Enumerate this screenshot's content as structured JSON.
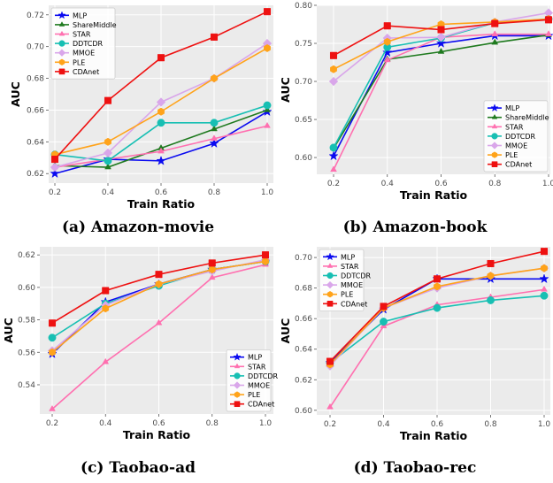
{
  "colors": {
    "MLP": "#0a0af0",
    "ShareMiddle": "#1f7a1f",
    "STAR": "#ff70b0",
    "DDTCDR": "#17bfb3",
    "MMOE": "#d9a6ea",
    "PLE": "#ffa31a",
    "CDAnet": "#ee1111",
    "plot_bg": "#ebebeb",
    "grid": "#ffffff"
  },
  "markers": {
    "MLP": "star",
    "ShareMiddle": "tri",
    "STAR": "tri",
    "DDTCDR": "circle",
    "MMOE": "diamond",
    "PLE": "hexagon",
    "CDAnet": "square"
  },
  "chart_data": [
    {
      "type": "line",
      "caption_letter": "(a)",
      "caption": "Amazon-movie",
      "xlabel": "Train Ratio",
      "ylabel": "AUC",
      "x": [
        0.2,
        0.4,
        0.6,
        0.8,
        1.0
      ],
      "xticks": [
        "0.2",
        "0.4",
        "0.6",
        "0.8",
        "1.0"
      ],
      "ylim": [
        0.614,
        0.726
      ],
      "yticks": [
        0.62,
        0.64,
        0.66,
        0.68,
        0.7,
        0.72
      ],
      "ytick_labels": [
        "0.62",
        "0.64",
        "0.66",
        "0.68",
        "0.70",
        "0.72"
      ],
      "legend": "upper-left",
      "grid": true,
      "series": [
        {
          "name": "MLP",
          "values": [
            0.62,
            0.629,
            0.628,
            0.639,
            0.659
          ]
        },
        {
          "name": "ShareMiddle",
          "values": [
            0.625,
            0.624,
            0.636,
            0.648,
            0.66
          ]
        },
        {
          "name": "STAR",
          "values": [
            0.624,
            0.629,
            0.634,
            0.642,
            0.65
          ]
        },
        {
          "name": "DDTCDR",
          "values": [
            0.632,
            0.628,
            0.652,
            0.652,
            0.663
          ]
        },
        {
          "name": "MMOE",
          "values": [
            0.624,
            0.633,
            0.665,
            0.68,
            0.702
          ]
        },
        {
          "name": "PLE",
          "values": [
            0.632,
            0.64,
            0.659,
            0.68,
            0.699
          ]
        },
        {
          "name": "CDAnet",
          "values": [
            0.629,
            0.666,
            0.693,
            0.706,
            0.722
          ]
        }
      ]
    },
    {
      "type": "line",
      "caption_letter": "(b)",
      "caption": "Amazon-book",
      "xlabel": "Train Ratio",
      "ylabel": "AUC",
      "x": [
        0.2,
        0.4,
        0.6,
        0.8,
        1.0
      ],
      "xticks": [
        "0.2",
        "0.4",
        "0.6",
        "0.8",
        "1.0"
      ],
      "ylim": [
        0.578,
        0.8
      ],
      "yticks": [
        0.6,
        0.65,
        0.7,
        0.75,
        0.8
      ],
      "ytick_labels": [
        "0.60",
        "0.65",
        "0.70",
        "0.75",
        "0.80"
      ],
      "legend": "lower-right",
      "grid": true,
      "series": [
        {
          "name": "MLP",
          "values": [
            0.602,
            0.738,
            0.75,
            0.76,
            0.76
          ]
        },
        {
          "name": "ShareMiddle",
          "values": [
            0.612,
            0.729,
            0.739,
            0.751,
            0.761
          ]
        },
        {
          "name": "STAR",
          "values": [
            0.584,
            0.728,
            0.758,
            0.762,
            0.762
          ]
        },
        {
          "name": "DDTCDR",
          "values": [
            0.613,
            0.745,
            0.757,
            0.777,
            0.782
          ]
        },
        {
          "name": "MMOE",
          "values": [
            0.7,
            0.757,
            0.758,
            0.778,
            0.79
          ]
        },
        {
          "name": "PLE",
          "values": [
            0.716,
            0.752,
            0.775,
            0.778,
            0.782
          ]
        },
        {
          "name": "CDAnet",
          "values": [
            0.734,
            0.773,
            0.768,
            0.776,
            0.781
          ]
        }
      ]
    },
    {
      "type": "line",
      "caption_letter": "(c)",
      "caption": "Taobao-ad",
      "xlabel": "Train Ratio",
      "ylabel": "AUC",
      "x": [
        0.2,
        0.4,
        0.6,
        0.8,
        1.0
      ],
      "xticks": [
        "0.2",
        "0.4",
        "0.6",
        "0.8",
        "1.0"
      ],
      "ylim": [
        0.522,
        0.625
      ],
      "yticks": [
        0.54,
        0.56,
        0.58,
        0.6,
        0.62
      ],
      "ytick_labels": [
        "0.54",
        "0.56",
        "0.58",
        "0.60",
        "0.62"
      ],
      "legend": "lower-right",
      "grid": true,
      "series": [
        {
          "name": "MLP",
          "values": [
            0.559,
            0.591,
            0.602,
            0.611,
            0.616
          ]
        },
        {
          "name": "STAR",
          "values": [
            0.525,
            0.554,
            0.578,
            0.606,
            0.614
          ]
        },
        {
          "name": "DDTCDR",
          "values": [
            0.569,
            0.59,
            0.601,
            0.611,
            0.616
          ]
        },
        {
          "name": "MMOE",
          "values": [
            0.561,
            0.589,
            0.602,
            0.61,
            0.617
          ]
        },
        {
          "name": "PLE",
          "values": [
            0.56,
            0.587,
            0.602,
            0.611,
            0.616
          ]
        },
        {
          "name": "CDAnet",
          "values": [
            0.578,
            0.598,
            0.608,
            0.615,
            0.62
          ]
        }
      ]
    },
    {
      "type": "line",
      "caption_letter": "(d)",
      "caption": "Taobao-rec",
      "xlabel": "Train Ratio",
      "ylabel": "AUC",
      "x": [
        0.2,
        0.4,
        0.6,
        0.8,
        1.0
      ],
      "xticks": [
        "0.2",
        "0.4",
        "0.6",
        "0.8",
        "1.0"
      ],
      "ylim": [
        0.597,
        0.707
      ],
      "yticks": [
        0.6,
        0.62,
        0.64,
        0.66,
        0.68,
        0.7
      ],
      "ytick_labels": [
        "0.60",
        "0.62",
        "0.64",
        "0.66",
        "0.68",
        "0.70"
      ],
      "legend": "upper-left",
      "grid": true,
      "series": [
        {
          "name": "MLP",
          "values": [
            0.631,
            0.666,
            0.686,
            0.686,
            0.686
          ]
        },
        {
          "name": "STAR",
          "values": [
            0.602,
            0.655,
            0.669,
            0.674,
            0.679
          ]
        },
        {
          "name": "DDTCDR",
          "values": [
            0.631,
            0.658,
            0.667,
            0.672,
            0.675
          ]
        },
        {
          "name": "MMOE",
          "values": [
            0.629,
            0.667,
            0.68,
            0.688,
            0.693
          ]
        },
        {
          "name": "PLE",
          "values": [
            0.63,
            0.667,
            0.681,
            0.688,
            0.693
          ]
        },
        {
          "name": "CDAnet",
          "values": [
            0.632,
            0.668,
            0.686,
            0.696,
            0.704
          ]
        }
      ]
    }
  ]
}
